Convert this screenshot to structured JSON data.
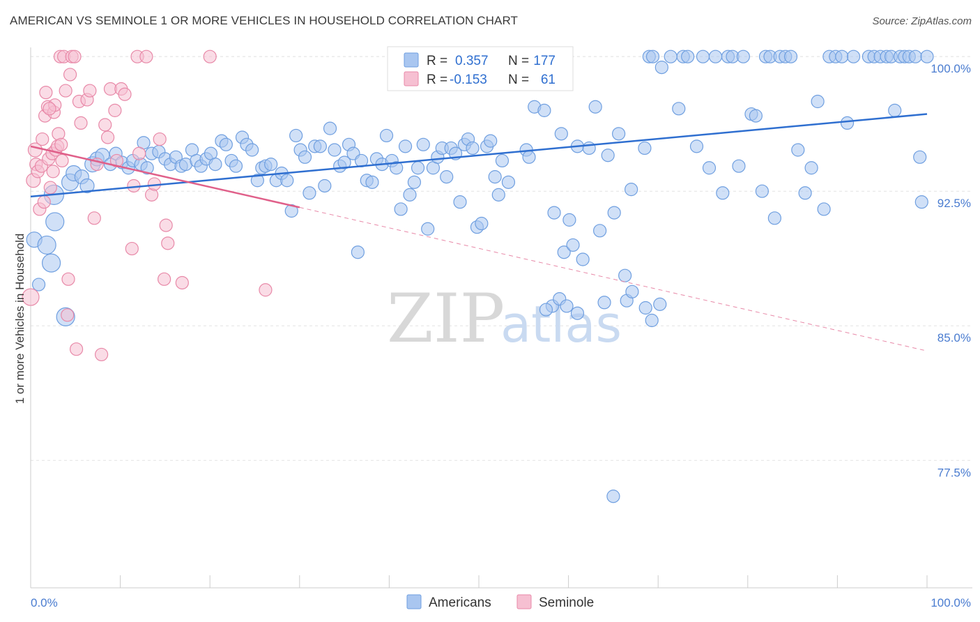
{
  "header": {
    "title": "AMERICAN VS SEMINOLE 1 OR MORE VEHICLES IN HOUSEHOLD CORRELATION CHART",
    "source": "Source: ZipAtlas.com"
  },
  "legend": {
    "rows": [
      {
        "r_label": "R =",
        "r_value": "0.357",
        "n_label": "N =",
        "n_value": "177"
      },
      {
        "r_label": "R =",
        "r_value": "-0.153",
        "n_label": "N =",
        "n_value": "61"
      }
    ]
  },
  "watermark": {
    "zip": "ZIP",
    "atlas": "atlas"
  },
  "chart_data": {
    "type": "scatter",
    "ylabel": "1 or more Vehicles in Household",
    "xlim": [
      0,
      100
    ],
    "ylim": [
      70.4,
      101.6
    ],
    "y_ticks": [
      {
        "value": 100.0,
        "label": "100.0%"
      },
      {
        "value": 92.5,
        "label": "92.5%"
      },
      {
        "value": 85.0,
        "label": "85.0%"
      },
      {
        "value": 77.5,
        "label": "77.5%"
      }
    ],
    "x_tick_labels": {
      "min": "0.0%",
      "max": "100.0%"
    },
    "grid": true,
    "legend_placement": "top-center",
    "series": [
      {
        "name": "Americans",
        "color": "#6f9fe0",
        "fill": "#a9c6f0",
        "trend": {
          "x": [
            0,
            100
          ],
          "y": [
            92.2,
            96.8
          ],
          "style": "solid"
        },
        "points": [
          [
            0.4,
            89.8,
            11
          ],
          [
            0.9,
            87.3,
            9
          ],
          [
            1.8,
            89.5,
            13
          ],
          [
            2.3,
            88.5,
            13
          ],
          [
            2.6,
            92.3,
            14
          ],
          [
            2.7,
            90.8,
            13
          ],
          [
            3.9,
            85.5,
            13
          ],
          [
            4.4,
            93.0,
            12
          ],
          [
            4.8,
            93.5,
            11
          ],
          [
            5.7,
            93.3,
            10
          ],
          [
            6.3,
            92.8,
            10
          ],
          [
            6.9,
            94.0,
            11
          ],
          [
            7.4,
            94.3,
            10
          ],
          [
            8.0,
            94.5,
            10
          ],
          [
            8.9,
            94.0,
            9
          ],
          [
            9.5,
            94.6,
            9
          ],
          [
            10.2,
            94.1,
            9
          ],
          [
            10.9,
            93.8,
            9
          ],
          [
            11.4,
            94.2,
            9
          ],
          [
            12.3,
            94.0,
            9
          ],
          [
            12.6,
            95.2,
            9
          ],
          [
            13.0,
            93.8,
            9
          ],
          [
            13.5,
            94.6,
            9
          ],
          [
            14.3,
            94.7,
            9
          ],
          [
            15.0,
            94.3,
            9
          ],
          [
            15.6,
            94.0,
            9
          ],
          [
            16.2,
            94.4,
            9
          ],
          [
            16.8,
            93.9,
            9
          ],
          [
            17.3,
            94.0,
            9
          ],
          [
            18.0,
            94.8,
            9
          ],
          [
            18.5,
            94.2,
            9
          ],
          [
            19.0,
            93.9,
            9
          ],
          [
            19.6,
            94.3,
            9
          ],
          [
            20.1,
            94.6,
            9
          ],
          [
            20.6,
            94.0,
            9
          ],
          [
            21.3,
            95.3,
            9
          ],
          [
            21.8,
            95.1,
            9
          ],
          [
            22.4,
            94.2,
            9
          ],
          [
            22.9,
            93.9,
            9
          ],
          [
            23.6,
            95.5,
            9
          ],
          [
            24.1,
            95.1,
            9
          ],
          [
            24.7,
            94.8,
            9
          ],
          [
            25.3,
            93.1,
            9
          ],
          [
            25.8,
            93.8,
            9
          ],
          [
            26.2,
            93.9,
            9
          ],
          [
            26.8,
            94.0,
            9
          ],
          [
            27.4,
            93.1,
            9
          ],
          [
            28.0,
            93.5,
            9
          ],
          [
            28.6,
            93.1,
            9
          ],
          [
            29.1,
            91.4,
            9
          ],
          [
            29.6,
            95.6,
            9
          ],
          [
            30.1,
            94.8,
            9
          ],
          [
            30.6,
            94.4,
            9
          ],
          [
            31.1,
            92.4,
            9
          ],
          [
            31.7,
            95.0,
            9
          ],
          [
            32.3,
            95.0,
            9
          ],
          [
            32.8,
            92.8,
            9
          ],
          [
            33.4,
            96.0,
            9
          ],
          [
            33.9,
            94.8,
            9
          ],
          [
            34.5,
            93.9,
            9
          ],
          [
            35.0,
            94.1,
            9
          ],
          [
            35.5,
            95.1,
            9
          ],
          [
            36.0,
            94.6,
            9
          ],
          [
            36.5,
            89.1,
            9
          ],
          [
            36.9,
            94.2,
            9
          ],
          [
            37.5,
            93.1,
            9
          ],
          [
            38.1,
            93.0,
            9
          ],
          [
            38.6,
            94.3,
            9
          ],
          [
            39.2,
            94.0,
            9
          ],
          [
            39.7,
            95.6,
            9
          ],
          [
            40.3,
            94.2,
            9
          ],
          [
            40.8,
            93.8,
            9
          ],
          [
            41.3,
            91.5,
            9
          ],
          [
            41.8,
            95.0,
            9
          ],
          [
            42.3,
            92.3,
            9
          ],
          [
            42.8,
            93.0,
            9
          ],
          [
            43.2,
            93.8,
            9
          ],
          [
            43.8,
            95.1,
            9
          ],
          [
            44.3,
            90.4,
            9
          ],
          [
            44.9,
            93.8,
            9
          ],
          [
            45.4,
            94.4,
            9
          ],
          [
            45.9,
            94.9,
            9
          ],
          [
            46.4,
            93.3,
            9
          ],
          [
            46.9,
            94.9,
            9
          ],
          [
            47.4,
            94.6,
            9
          ],
          [
            47.9,
            91.9,
            9
          ],
          [
            48.4,
            95.1,
            9
          ],
          [
            48.8,
            95.4,
            9
          ],
          [
            49.3,
            94.9,
            9
          ],
          [
            49.8,
            90.5,
            9
          ],
          [
            50.3,
            90.7,
            9
          ],
          [
            50.9,
            95.0,
            9
          ],
          [
            51.3,
            95.3,
            9
          ],
          [
            51.8,
            93.3,
            9
          ],
          [
            52.2,
            92.3,
            9
          ],
          [
            52.6,
            94.2,
            9
          ],
          [
            53.3,
            93.0,
            9
          ],
          [
            53.5,
            99.2,
            9
          ],
          [
            54.3,
            99.6,
            9
          ],
          [
            55.3,
            94.8,
            9
          ],
          [
            55.6,
            94.4,
            9
          ],
          [
            56.2,
            97.2,
            9
          ],
          [
            57.3,
            97.0,
            9
          ],
          [
            58.4,
            91.3,
            9
          ],
          [
            59.2,
            95.7,
            9
          ],
          [
            59.5,
            89.1,
            9
          ],
          [
            60.1,
            90.9,
            9
          ],
          [
            60.5,
            89.5,
            9
          ],
          [
            61.0,
            95.0,
            9
          ],
          [
            61.6,
            88.7,
            9
          ],
          [
            62.3,
            94.9,
            9
          ],
          [
            63.0,
            97.2,
            9
          ],
          [
            63.5,
            90.3,
            9
          ],
          [
            64.4,
            94.5,
            9
          ],
          [
            65.1,
            91.3,
            9
          ],
          [
            65.6,
            95.7,
            9
          ],
          [
            66.3,
            87.8,
            9
          ],
          [
            67.0,
            92.6,
            9
          ],
          [
            68.5,
            94.9,
            9
          ],
          [
            69.0,
            100.0,
            9
          ],
          [
            69.4,
            100.0,
            9
          ],
          [
            70.4,
            99.4,
            9
          ],
          [
            71.4,
            100.0,
            9
          ],
          [
            72.3,
            97.1,
            9
          ],
          [
            72.8,
            100.0,
            9
          ],
          [
            73.3,
            100.0,
            9
          ],
          [
            74.3,
            95.0,
            9
          ],
          [
            75.0,
            100.0,
            9
          ],
          [
            75.7,
            93.8,
            9
          ],
          [
            76.4,
            100.0,
            9
          ],
          [
            77.2,
            92.4,
            9
          ],
          [
            77.8,
            100.0,
            9
          ],
          [
            78.3,
            100.0,
            9
          ],
          [
            79.0,
            93.9,
            9
          ],
          [
            79.5,
            100.0,
            9
          ],
          [
            80.4,
            96.8,
            9
          ],
          [
            80.9,
            96.7,
            9
          ],
          [
            81.6,
            92.5,
            9
          ],
          [
            82.0,
            100.0,
            9
          ],
          [
            82.5,
            100.0,
            9
          ],
          [
            83.0,
            91.0,
            9
          ],
          [
            83.6,
            100.0,
            9
          ],
          [
            84.2,
            100.0,
            9
          ],
          [
            84.8,
            100.0,
            9
          ],
          [
            85.6,
            94.8,
            9
          ],
          [
            86.4,
            92.4,
            9
          ],
          [
            87.1,
            93.8,
            9
          ],
          [
            87.8,
            97.5,
            9
          ],
          [
            88.5,
            91.5,
            9
          ],
          [
            89.1,
            100.0,
            9
          ],
          [
            89.8,
            100.0,
            9
          ],
          [
            90.5,
            100.0,
            9
          ],
          [
            91.1,
            96.3,
            9
          ],
          [
            91.8,
            100.0,
            9
          ],
          [
            93.5,
            100.0,
            9
          ],
          [
            94.1,
            100.0,
            9
          ],
          [
            94.8,
            100.0,
            9
          ],
          [
            95.5,
            100.0,
            9
          ],
          [
            96.0,
            100.0,
            9
          ],
          [
            96.4,
            97.0,
            9
          ],
          [
            97.0,
            100.0,
            9
          ],
          [
            97.5,
            100.0,
            9
          ],
          [
            98.0,
            100.0,
            9
          ],
          [
            98.7,
            100.0,
            9
          ],
          [
            100.0,
            100.0,
            9
          ],
          [
            99.2,
            94.4,
            9
          ],
          [
            99.4,
            91.9,
            9
          ],
          [
            58.2,
            86.1,
            9
          ],
          [
            61.0,
            85.7,
            9
          ],
          [
            66.5,
            86.4,
            9
          ],
          [
            69.3,
            85.3,
            9
          ],
          [
            59.0,
            86.5,
            9
          ],
          [
            68.6,
            86.0,
            9
          ],
          [
            65.0,
            75.5,
            9
          ],
          [
            64.0,
            86.3,
            9
          ],
          [
            67.1,
            86.9,
            9
          ],
          [
            59.8,
            86.1,
            9
          ],
          [
            57.5,
            85.9,
            9
          ],
          [
            70.2,
            86.2,
            9
          ]
        ]
      },
      {
        "name": "Seminole",
        "color": "#e889a8",
        "fill": "#f6c0d2",
        "trend": {
          "x": [
            0,
            30
          ],
          "y": [
            95.0,
            91.6
          ],
          "style": "solid"
        },
        "trend_extension": {
          "x": [
            30,
            100
          ],
          "y": [
            91.6,
            83.6
          ],
          "style": "dashed"
        },
        "points": [
          [
            0.0,
            86.6,
            12
          ],
          [
            0.3,
            93.1,
            10
          ],
          [
            0.5,
            94.8,
            10
          ],
          [
            0.6,
            94.0,
            9
          ],
          [
            0.8,
            93.6,
            9
          ],
          [
            1.0,
            91.5,
            9
          ],
          [
            1.2,
            93.9,
            9
          ],
          [
            1.3,
            95.4,
            9
          ],
          [
            1.5,
            91.9,
            9
          ],
          [
            1.6,
            96.7,
            9
          ],
          [
            1.7,
            98.0,
            9
          ],
          [
            1.9,
            97.2,
            9
          ],
          [
            2.0,
            94.3,
            9
          ],
          [
            2.2,
            92.7,
            9
          ],
          [
            2.4,
            94.6,
            9
          ],
          [
            2.5,
            93.6,
            9
          ],
          [
            2.6,
            96.9,
            9
          ],
          [
            2.7,
            97.3,
            9
          ],
          [
            2.8,
            94.8,
            9
          ],
          [
            3.0,
            95.0,
            9
          ],
          [
            3.1,
            95.7,
            9
          ],
          [
            3.3,
            100.0,
            9
          ],
          [
            3.5,
            94.2,
            9
          ],
          [
            3.7,
            100.0,
            9
          ],
          [
            3.9,
            98.1,
            9
          ],
          [
            4.1,
            85.6,
            9
          ],
          [
            4.2,
            87.6,
            9
          ],
          [
            4.4,
            99.0,
            9
          ],
          [
            4.6,
            100.0,
            9
          ],
          [
            4.9,
            100.0,
            9
          ],
          [
            5.1,
            83.7,
            9
          ],
          [
            5.4,
            97.5,
            9
          ],
          [
            5.6,
            96.3,
            9
          ],
          [
            6.3,
            97.6,
            9
          ],
          [
            6.6,
            98.1,
            9
          ],
          [
            7.1,
            91.0,
            9
          ],
          [
            7.4,
            94.0,
            9
          ],
          [
            7.9,
            83.4,
            9
          ],
          [
            8.3,
            96.2,
            9
          ],
          [
            8.6,
            95.5,
            9
          ],
          [
            8.9,
            98.2,
            9
          ],
          [
            9.4,
            97.0,
            9
          ],
          [
            9.6,
            94.2,
            9
          ],
          [
            10.1,
            98.2,
            9
          ],
          [
            10.5,
            97.9,
            9
          ],
          [
            11.3,
            89.3,
            9
          ],
          [
            11.5,
            92.8,
            9
          ],
          [
            11.9,
            100.0,
            9
          ],
          [
            12.1,
            94.6,
            9
          ],
          [
            12.9,
            100.0,
            9
          ],
          [
            13.5,
            92.3,
            9
          ],
          [
            13.8,
            92.9,
            9
          ],
          [
            14.4,
            95.4,
            9
          ],
          [
            14.9,
            87.6,
            9
          ],
          [
            15.1,
            90.6,
            9
          ],
          [
            15.3,
            89.6,
            9
          ],
          [
            16.9,
            87.4,
            9
          ],
          [
            20.0,
            100.0,
            9
          ],
          [
            26.2,
            87.0,
            9
          ],
          [
            2.1,
            97.1,
            9
          ],
          [
            3.4,
            95.1,
            9
          ]
        ]
      }
    ]
  }
}
